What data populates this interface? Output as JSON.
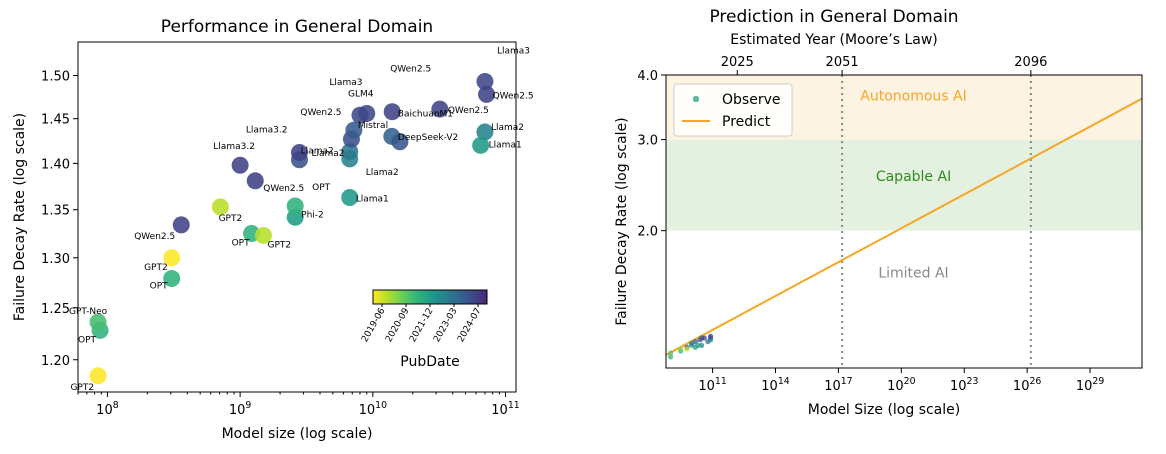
{
  "chart_data": [
    {
      "type": "scatter",
      "title": "Performance in General Domain",
      "xlabel": "Model size (log scale)",
      "ylabel": "Failure Decay Rate (log scale)",
      "x_scale": "log",
      "y_scale": "log",
      "xlim": [
        60000000,
        120000000000
      ],
      "ylim": [
        1.17,
        1.54
      ],
      "x_ticks": [
        {
          "value": 100000000,
          "label": "10",
          "sup": "8"
        },
        {
          "value": 1000000000,
          "label": "10",
          "sup": "9"
        },
        {
          "value": 10000000000,
          "label": "10",
          "sup": "10"
        },
        {
          "value": 100000000000,
          "label": "10",
          "sup": "11"
        }
      ],
      "y_ticks": [
        {
          "value": 1.2,
          "label": "1.20"
        },
        {
          "value": 1.25,
          "label": "1.25"
        },
        {
          "value": 1.3,
          "label": "1.30"
        },
        {
          "value": 1.35,
          "label": "1.35"
        },
        {
          "value": 1.4,
          "label": "1.40"
        },
        {
          "value": 1.45,
          "label": "1.45"
        },
        {
          "value": 1.5,
          "label": "1.50"
        }
      ],
      "colorbar": {
        "label": "PubDate",
        "ticks": [
          "2019-06",
          "2020-09",
          "2021-12",
          "2023-03",
          "2024-07"
        ],
        "colors": [
          "#fde725",
          "#b5de2b",
          "#6ece58",
          "#35b779",
          "#1f9e89",
          "#26828e",
          "#31688e",
          "#3e4989",
          "#482878"
        ]
      },
      "points": [
        {
          "x": 85000000,
          "y": 1.185,
          "t": 0.0,
          "label": "GPT2"
        },
        {
          "x": 88000000,
          "y": 1.228,
          "t": 0.4,
          "label": "OPT"
        },
        {
          "x": 85000000,
          "y": 1.236,
          "t": 0.34,
          "label": "GPT-Neo"
        },
        {
          "x": 305000000,
          "y": 1.3,
          "t": 0.0,
          "label": "GPT2"
        },
        {
          "x": 305000000,
          "y": 1.279,
          "t": 0.4,
          "label": "OPT"
        },
        {
          "x": 360000000,
          "y": 1.334,
          "t": 0.9,
          "label": "QWen2.5"
        },
        {
          "x": 710000000,
          "y": 1.353,
          "t": 0.12,
          "label": "GPT2"
        },
        {
          "x": 1000000000,
          "y": 1.398,
          "t": 0.9,
          "label": "Llama3.2"
        },
        {
          "x": 1300000000,
          "y": 1.381,
          "t": 0.9,
          "label": "QWen2.5"
        },
        {
          "x": 1220000000,
          "y": 1.325,
          "t": 0.4,
          "label": "OPT"
        },
        {
          "x": 1500000000,
          "y": 1.323,
          "t": 0.12,
          "label": "GPT2"
        },
        {
          "x": 2600000000,
          "y": 1.342,
          "t": 0.5,
          "label": "Phi-2"
        },
        {
          "x": 2600000000,
          "y": 1.354,
          "t": 0.4,
          "label": "OPT"
        },
        {
          "x": 2800000000,
          "y": 1.404,
          "t": 0.84,
          "label": "Llama2"
        },
        {
          "x": 2800000000,
          "y": 1.412,
          "t": 0.9,
          "label": "Llama3.2"
        },
        {
          "x": 6700000000,
          "y": 1.363,
          "t": 0.52,
          "label": "Llama1"
        },
        {
          "x": 6700000000,
          "y": 1.405,
          "t": 0.62,
          "label": "Llama2"
        },
        {
          "x": 6700000000,
          "y": 1.413,
          "t": 0.68,
          "label": "Llama2"
        },
        {
          "x": 6900000000,
          "y": 1.427,
          "t": 0.84,
          "label": "QWen2.5"
        },
        {
          "x": 7200000000,
          "y": 1.437,
          "t": 0.8,
          "label": "Mistral"
        },
        {
          "x": 9000000000,
          "y": 1.456,
          "t": 0.88,
          "label": "GLM4"
        },
        {
          "x": 8000000000,
          "y": 1.454,
          "t": 0.88,
          "label": "Llama3"
        },
        {
          "x": 14000000000,
          "y": 1.458,
          "t": 0.9,
          "label": "QWen2.5"
        },
        {
          "x": 13900000000,
          "y": 1.43,
          "t": 0.78,
          "label": "BaichuanM1"
        },
        {
          "x": 16000000000,
          "y": 1.424,
          "t": 0.82,
          "label": "DeepSeek-V2"
        },
        {
          "x": 32000000000,
          "y": 1.461,
          "t": 0.9,
          "label": "QWen2.5"
        },
        {
          "x": 70000000000,
          "y": 1.493,
          "t": 0.88,
          "label": "Llama3"
        },
        {
          "x": 72000000000,
          "y": 1.478,
          "t": 0.9,
          "label": "QWen2.5"
        },
        {
          "x": 70000000000,
          "y": 1.435,
          "t": 0.62,
          "label": "Llama2"
        },
        {
          "x": 65000000000,
          "y": 1.42,
          "t": 0.52,
          "label": "Llama1"
        }
      ]
    },
    {
      "type": "scatter",
      "title": "Prediction in General Domain",
      "top_xlabel": "Estimated Year (Moore’s Law)",
      "xlabel": "Model Size (log scale)",
      "ylabel": "Failure Decay Rate (log scale)",
      "x_scale": "log",
      "y_scale": "log",
      "xlim": [
        600000000,
        30000000000000000000000000000000
      ],
      "ylim": [
        1.085,
        4.0
      ],
      "x_ticks": [
        {
          "value": 100000000000,
          "label": "10",
          "sup": "11"
        },
        {
          "value": 100000000000000,
          "label": "10",
          "sup": "14"
        },
        {
          "value": 100000000000000000,
          "label": "10",
          "sup": "17"
        },
        {
          "value": 1e+20,
          "label": "10",
          "sup": "20"
        },
        {
          "value": 1e+23,
          "label": "10",
          "sup": "23"
        },
        {
          "value": 1e+26,
          "label": "10",
          "sup": "26"
        },
        {
          "value": 1e+29,
          "label": "10",
          "sup": "29"
        }
      ],
      "top_ticks": [
        {
          "value": 1500000000000,
          "label": "2025"
        },
        {
          "value": 150000000000000000,
          "label": "2051"
        },
        {
          "value": 1.5e+26,
          "label": "2096"
        }
      ],
      "y_ticks": [
        {
          "value": 2.0,
          "label": "2.0"
        },
        {
          "value": 3.0,
          "label": "3.0"
        },
        {
          "value": 4.0,
          "label": "4.0"
        }
      ],
      "regions": [
        {
          "label": "Autonomous AI",
          "y_from": 3.0,
          "y_to": 4.0,
          "fill": "#fdf3e3",
          "text_color": "#f5a623",
          "label_y": 3.65
        },
        {
          "label": "Capable AI",
          "y_from": 2.0,
          "y_to": 3.0,
          "fill": "#e5f1e0",
          "text_color": "#2e8b1f",
          "label_y": 2.55
        },
        {
          "label": "Limited AI",
          "y_from": 1.085,
          "y_to": 2.0,
          "fill": "#ffffff",
          "text_color": "#888888",
          "label_y": 1.66
        }
      ],
      "vlines": [
        {
          "x": 150000000000000000,
          "color": "#888888"
        },
        {
          "x": 1.5e+26,
          "color": "#888888"
        }
      ],
      "legend": {
        "position": "top-left",
        "items": [
          {
            "label": "Observe",
            "kind": "marker",
            "color": "#5fb8a0"
          },
          {
            "label": "Predict",
            "kind": "line",
            "color": "#f5a623"
          }
        ]
      },
      "predict_line": {
        "color": "#f5a623",
        "x": [
          600000000,
          30000000000000000000000000000000
        ],
        "y": [
          1.15,
          3.6
        ]
      },
      "observe_points": [
        {
          "x": 1000000000,
          "y": 1.14,
          "t": 0.4
        },
        {
          "x": 1000000000,
          "y": 1.16,
          "t": 0.3
        },
        {
          "x": 3000000000,
          "y": 1.17,
          "t": 0.4
        },
        {
          "x": 3000000000,
          "y": 1.18,
          "t": 0.2
        },
        {
          "x": 6000000000,
          "y": 1.19,
          "t": 0.8
        },
        {
          "x": 10000000000,
          "y": 1.2,
          "t": 0.4
        },
        {
          "x": 10000000000,
          "y": 1.21,
          "t": 0.7
        },
        {
          "x": 15000000000,
          "y": 1.22,
          "t": 0.8
        },
        {
          "x": 20000000000,
          "y": 1.2,
          "t": 0.5
        },
        {
          "x": 25000000000,
          "y": 1.23,
          "t": 0.85
        },
        {
          "x": 30000000000,
          "y": 1.24,
          "t": 0.8
        },
        {
          "x": 40000000000,
          "y": 1.24,
          "t": 0.9
        },
        {
          "x": 80000000000,
          "y": 1.24,
          "t": 0.85
        },
        {
          "x": 80000000000,
          "y": 1.23,
          "t": 0.6
        },
        {
          "x": 6000000000,
          "y": 1.18,
          "t": 0.1
        },
        {
          "x": 15000000000,
          "y": 1.19,
          "t": 0.5
        },
        {
          "x": 30000000000,
          "y": 1.2,
          "t": 0.6
        },
        {
          "x": 60000000000,
          "y": 1.22,
          "t": 0.7
        },
        {
          "x": 80000000000,
          "y": 1.25,
          "t": 0.88
        }
      ]
    }
  ]
}
